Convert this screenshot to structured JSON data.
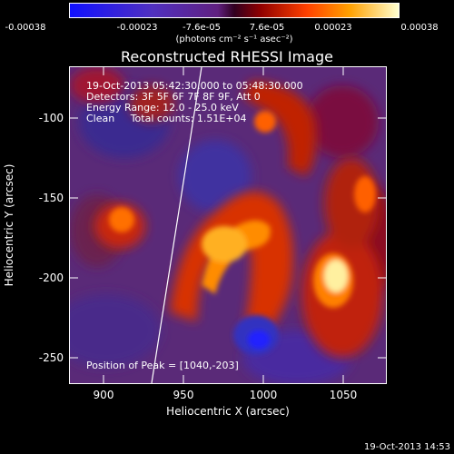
{
  "colorbar": {
    "ticks": [
      "-0.00038",
      "-0.00023",
      "-7.6e-05",
      "7.6e-05",
      "0.00023",
      "0.00038"
    ],
    "unit": "(photons cm⁻² s⁻¹ asec⁻²)"
  },
  "title": "Reconstructed RHESSI Image",
  "info": {
    "time": "19-Oct-2013 05:42:30.000 to 05:48:30.000",
    "detectors": "Detectors: 3F 5F 6F 7F 8F 9F, Att 0",
    "energy": "Energy Range: 12.0 - 25.0 keV",
    "clean": "Clean     Total counts: 1.51E+04",
    "peak": "Position of Peak = [1040,-203]"
  },
  "axes": {
    "xlabel": "Heliocentric X (arcsec)",
    "ylabel": "Heliocentric Y (arcsec)",
    "xticks": [
      "900",
      "950",
      "1000",
      "1050"
    ],
    "yticks": [
      "-100",
      "-150",
      "-200",
      "-250"
    ]
  },
  "footer": {
    "timestamp": "19-Oct-2013 14:53"
  },
  "colors": {
    "background": "#000000",
    "axes": "#ffffff"
  }
}
